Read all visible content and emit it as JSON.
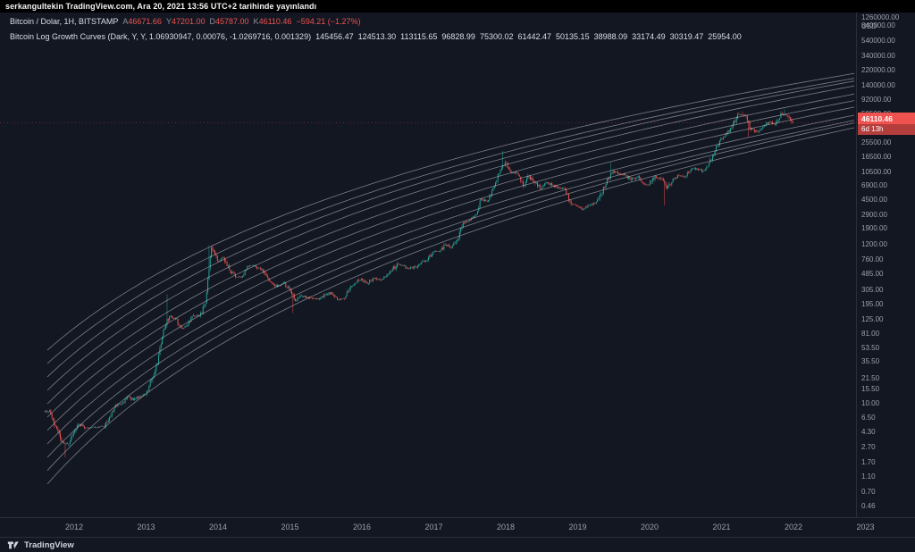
{
  "topbar": {
    "published_text": "serkangultekin TradingView.com, Ara 20, 2021 13:56 UTC+2 tarihinde yayınlandı"
  },
  "legend": {
    "symbol_row": {
      "title": "Bitcoin / Dolar, 1H, BITSTAMP",
      "ohlc": [
        {
          "label": "A",
          "value": "46671.66"
        },
        {
          "label": "Y",
          "value": "47201.00"
        },
        {
          "label": "D",
          "value": "45787.00"
        },
        {
          "label": "K",
          "value": "46110.46"
        }
      ],
      "change": "−594.21 (−1.27%)"
    },
    "indicator_row": {
      "title": "Bitcoin Log Growth Curves (Dark, Y, Y, 1.06930947, 0.00076, -1.0269716, 0.001329)",
      "values": [
        "145456.47",
        "124513.30",
        "113115.65",
        "96828.99",
        "75300.02",
        "61442.47",
        "50135.15",
        "38988.09",
        "33174.49",
        "30319.47",
        "25954.00"
      ]
    }
  },
  "price_axis": {
    "unit": "USD",
    "tick_labels": [
      "1260000.00",
      "840000.00",
      "540000.00",
      "340000.00",
      "220000.00",
      "140000.00",
      "92000.00",
      "59500.00",
      "25500.00",
      "16500.00",
      "10500.00",
      "6900.00",
      "4500.00",
      "2900.00",
      "1900.00",
      "1200.00",
      "760.00",
      "485.00",
      "305.00",
      "195.00",
      "125.00",
      "81.00",
      "53.50",
      "35.50",
      "21.50",
      "15.50",
      "10.00",
      "6.50",
      "4.30",
      "2.70",
      "1.70",
      "1.10",
      "0.70",
      "0.46"
    ],
    "last_price_label": "46110.46",
    "countdown": "6d 13h"
  },
  "time_axis": {
    "years": [
      "2012",
      "2013",
      "2014",
      "2015",
      "2016",
      "2017",
      "2018",
      "2019",
      "2020",
      "2021",
      "2022",
      "2023"
    ]
  },
  "footer": {
    "brand": "TradingView"
  },
  "colors": {
    "background": "#131722",
    "up": "#26a69a",
    "down": "#ef5350",
    "curve": "#e3e6ee",
    "axis_text": "#9aa0aa",
    "border": "#2a2e39",
    "label_red": "#ef5350"
  },
  "chart_data": {
    "type": "candlestick",
    "title": "Bitcoin / Dolar, 1H, BITSTAMP with Bitcoin Log Growth Curves",
    "y_scale": "log",
    "ylabel": "USD",
    "y_range_usd": [
      0.46,
      1260000
    ],
    "x_range_years": [
      2011.6,
      2022.9
    ],
    "ohlc_current": {
      "open": 46671.66,
      "high": 47201.0,
      "low": 45787.0,
      "close": 46110.46,
      "change": -594.21,
      "change_pct": -1.27
    },
    "last_price": 46110.46,
    "monthly_closes": {
      "start_month": "2011-08",
      "values": [
        8.2,
        5.1,
        3.2,
        3.0,
        4.2,
        5.4,
        4.9,
        4.9,
        5.0,
        5.1,
        6.7,
        9.4,
        10.2,
        12.4,
        11.2,
        12.6,
        13.4,
        20.4,
        33.4,
        93,
        139,
        128,
        97,
        106,
        141,
        141,
        204,
        1100,
        732,
        800,
        550,
        450,
        445,
        628,
        635,
        585,
        480,
        380,
        338,
        375,
        320,
        218,
        254,
        244,
        236,
        230,
        263,
        284,
        230,
        236,
        314,
        377,
        430,
        368,
        437,
        416,
        448,
        531,
        673,
        624,
        575,
        609,
        700,
        745,
        963,
        970,
        1190,
        1080,
        1350,
        2300,
        2480,
        2875,
        4700,
        4340,
        6450,
        10100,
        14100,
        10200,
        10300,
        6940,
        9240,
        7500,
        6400,
        7730,
        7030,
        6600,
        6300,
        4020,
        3740,
        3460,
        3850,
        4100,
        5320,
        8550,
        10800,
        10080,
        9600,
        8280,
        9150,
        7550,
        7190,
        9350,
        8540,
        6440,
        8630,
        9450,
        9140,
        11350,
        11650,
        10780,
        13800,
        19700,
        29000,
        33100,
        45200,
        58800,
        57700,
        37300,
        35000,
        41600,
        47100,
        43800,
        61300,
        57000,
        46110.46
      ]
    },
    "wick_events": [
      {
        "index": 3,
        "low": 2.0
      },
      {
        "index": 20,
        "high": 266
      },
      {
        "index": 27,
        "high": 1163
      },
      {
        "index": 41,
        "low": 152
      },
      {
        "index": 76,
        "high": 19891
      },
      {
        "index": 94,
        "high": 13880
      },
      {
        "index": 103,
        "low": 3850
      },
      {
        "index": 116,
        "high": 64895
      },
      {
        "index": 117,
        "low": 30000
      },
      {
        "index": 123,
        "high": 69000
      }
    ],
    "growth_curves": {
      "values_at_last_bar": [
        145456.47,
        124513.3,
        113115.65,
        96828.99,
        75300.02,
        61442.47,
        50135.15,
        38988.09,
        33174.49,
        30319.47,
        25954.0
      ],
      "values_at_left_edge": [
        50,
        33.5,
        22.5,
        15,
        10,
        6.7,
        4.5,
        3.0,
        2.0,
        1.35,
        0.9
      ]
    }
  }
}
